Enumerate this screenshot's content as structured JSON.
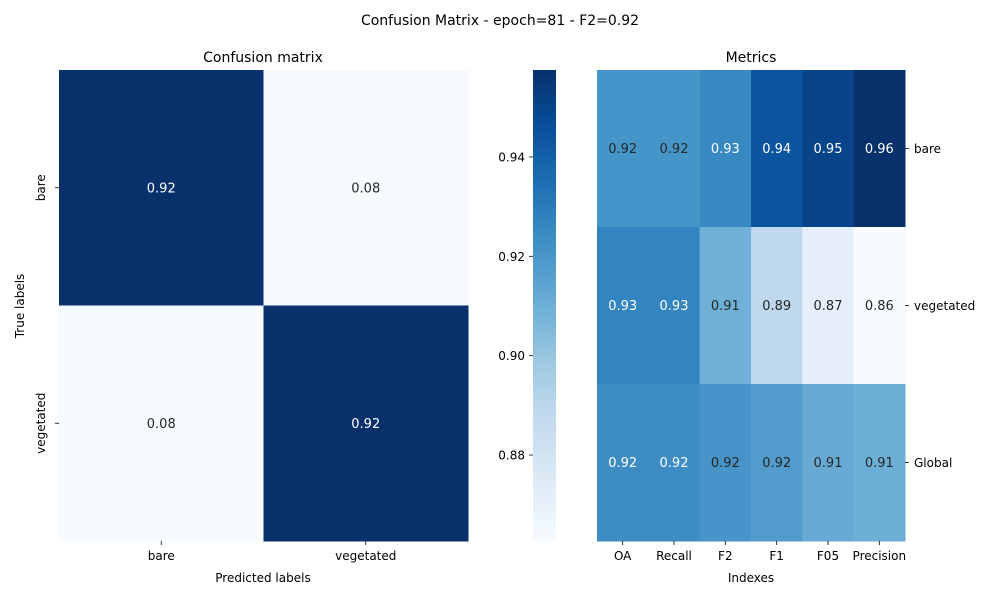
{
  "figure": {
    "suptitle": "Confusion Matrix - epoch=81 - F2=0.92"
  },
  "chart_data": [
    {
      "type": "heatmap",
      "title": "Confusion matrix",
      "xlabel": "Predicted labels",
      "ylabel": "True labels",
      "x_categories": [
        "bare",
        "vegetated"
      ],
      "y_categories": [
        "bare",
        "vegetated"
      ],
      "values": [
        [
          0.92,
          0.08
        ],
        [
          0.08,
          0.92
        ]
      ],
      "labels": [
        [
          "0.92",
          "0.08"
        ],
        [
          "0.08",
          "0.92"
        ]
      ],
      "colormap": "Blues",
      "colorbar": false
    },
    {
      "type": "heatmap",
      "title": "Metrics",
      "xlabel": "Indexes",
      "ylabel": "",
      "x_categories": [
        "OA",
        "Recall",
        "F2",
        "F1",
        "F05",
        "Precision"
      ],
      "y_categories": [
        "bare",
        "vegetated",
        "Global"
      ],
      "values": [
        [
          0.92,
          0.92,
          0.93,
          0.94,
          0.95,
          0.96
        ],
        [
          0.93,
          0.93,
          0.91,
          0.89,
          0.87,
          0.86
        ],
        [
          0.92,
          0.92,
          0.92,
          0.92,
          0.91,
          0.91
        ]
      ],
      "labels": [
        [
          "0.92",
          "0.92",
          "0.93",
          "0.94",
          "0.95",
          "0.96"
        ],
        [
          "0.93",
          "0.93",
          "0.91",
          "0.89",
          "0.87",
          "0.86"
        ],
        [
          "0.92",
          "0.92",
          "0.92",
          "0.92",
          "0.91",
          "0.91"
        ]
      ],
      "color_values": [
        [
          0.9207,
          0.9207,
          0.9254,
          0.9443,
          0.9503,
          0.9575
        ],
        [
          0.9269,
          0.9269,
          0.9093,
          0.8885,
          0.8715,
          0.8627
        ],
        [
          0.9236,
          0.9236,
          0.9205,
          0.9177,
          0.9114,
          0.9101
        ]
      ],
      "colormap": "Blues",
      "colorbar": true,
      "colorbar_ticks": [
        "0.88",
        "0.90",
        "0.92",
        "0.94"
      ],
      "colorbar_range": [
        0.8627,
        0.9575
      ],
      "yaxis_side": "right"
    }
  ]
}
